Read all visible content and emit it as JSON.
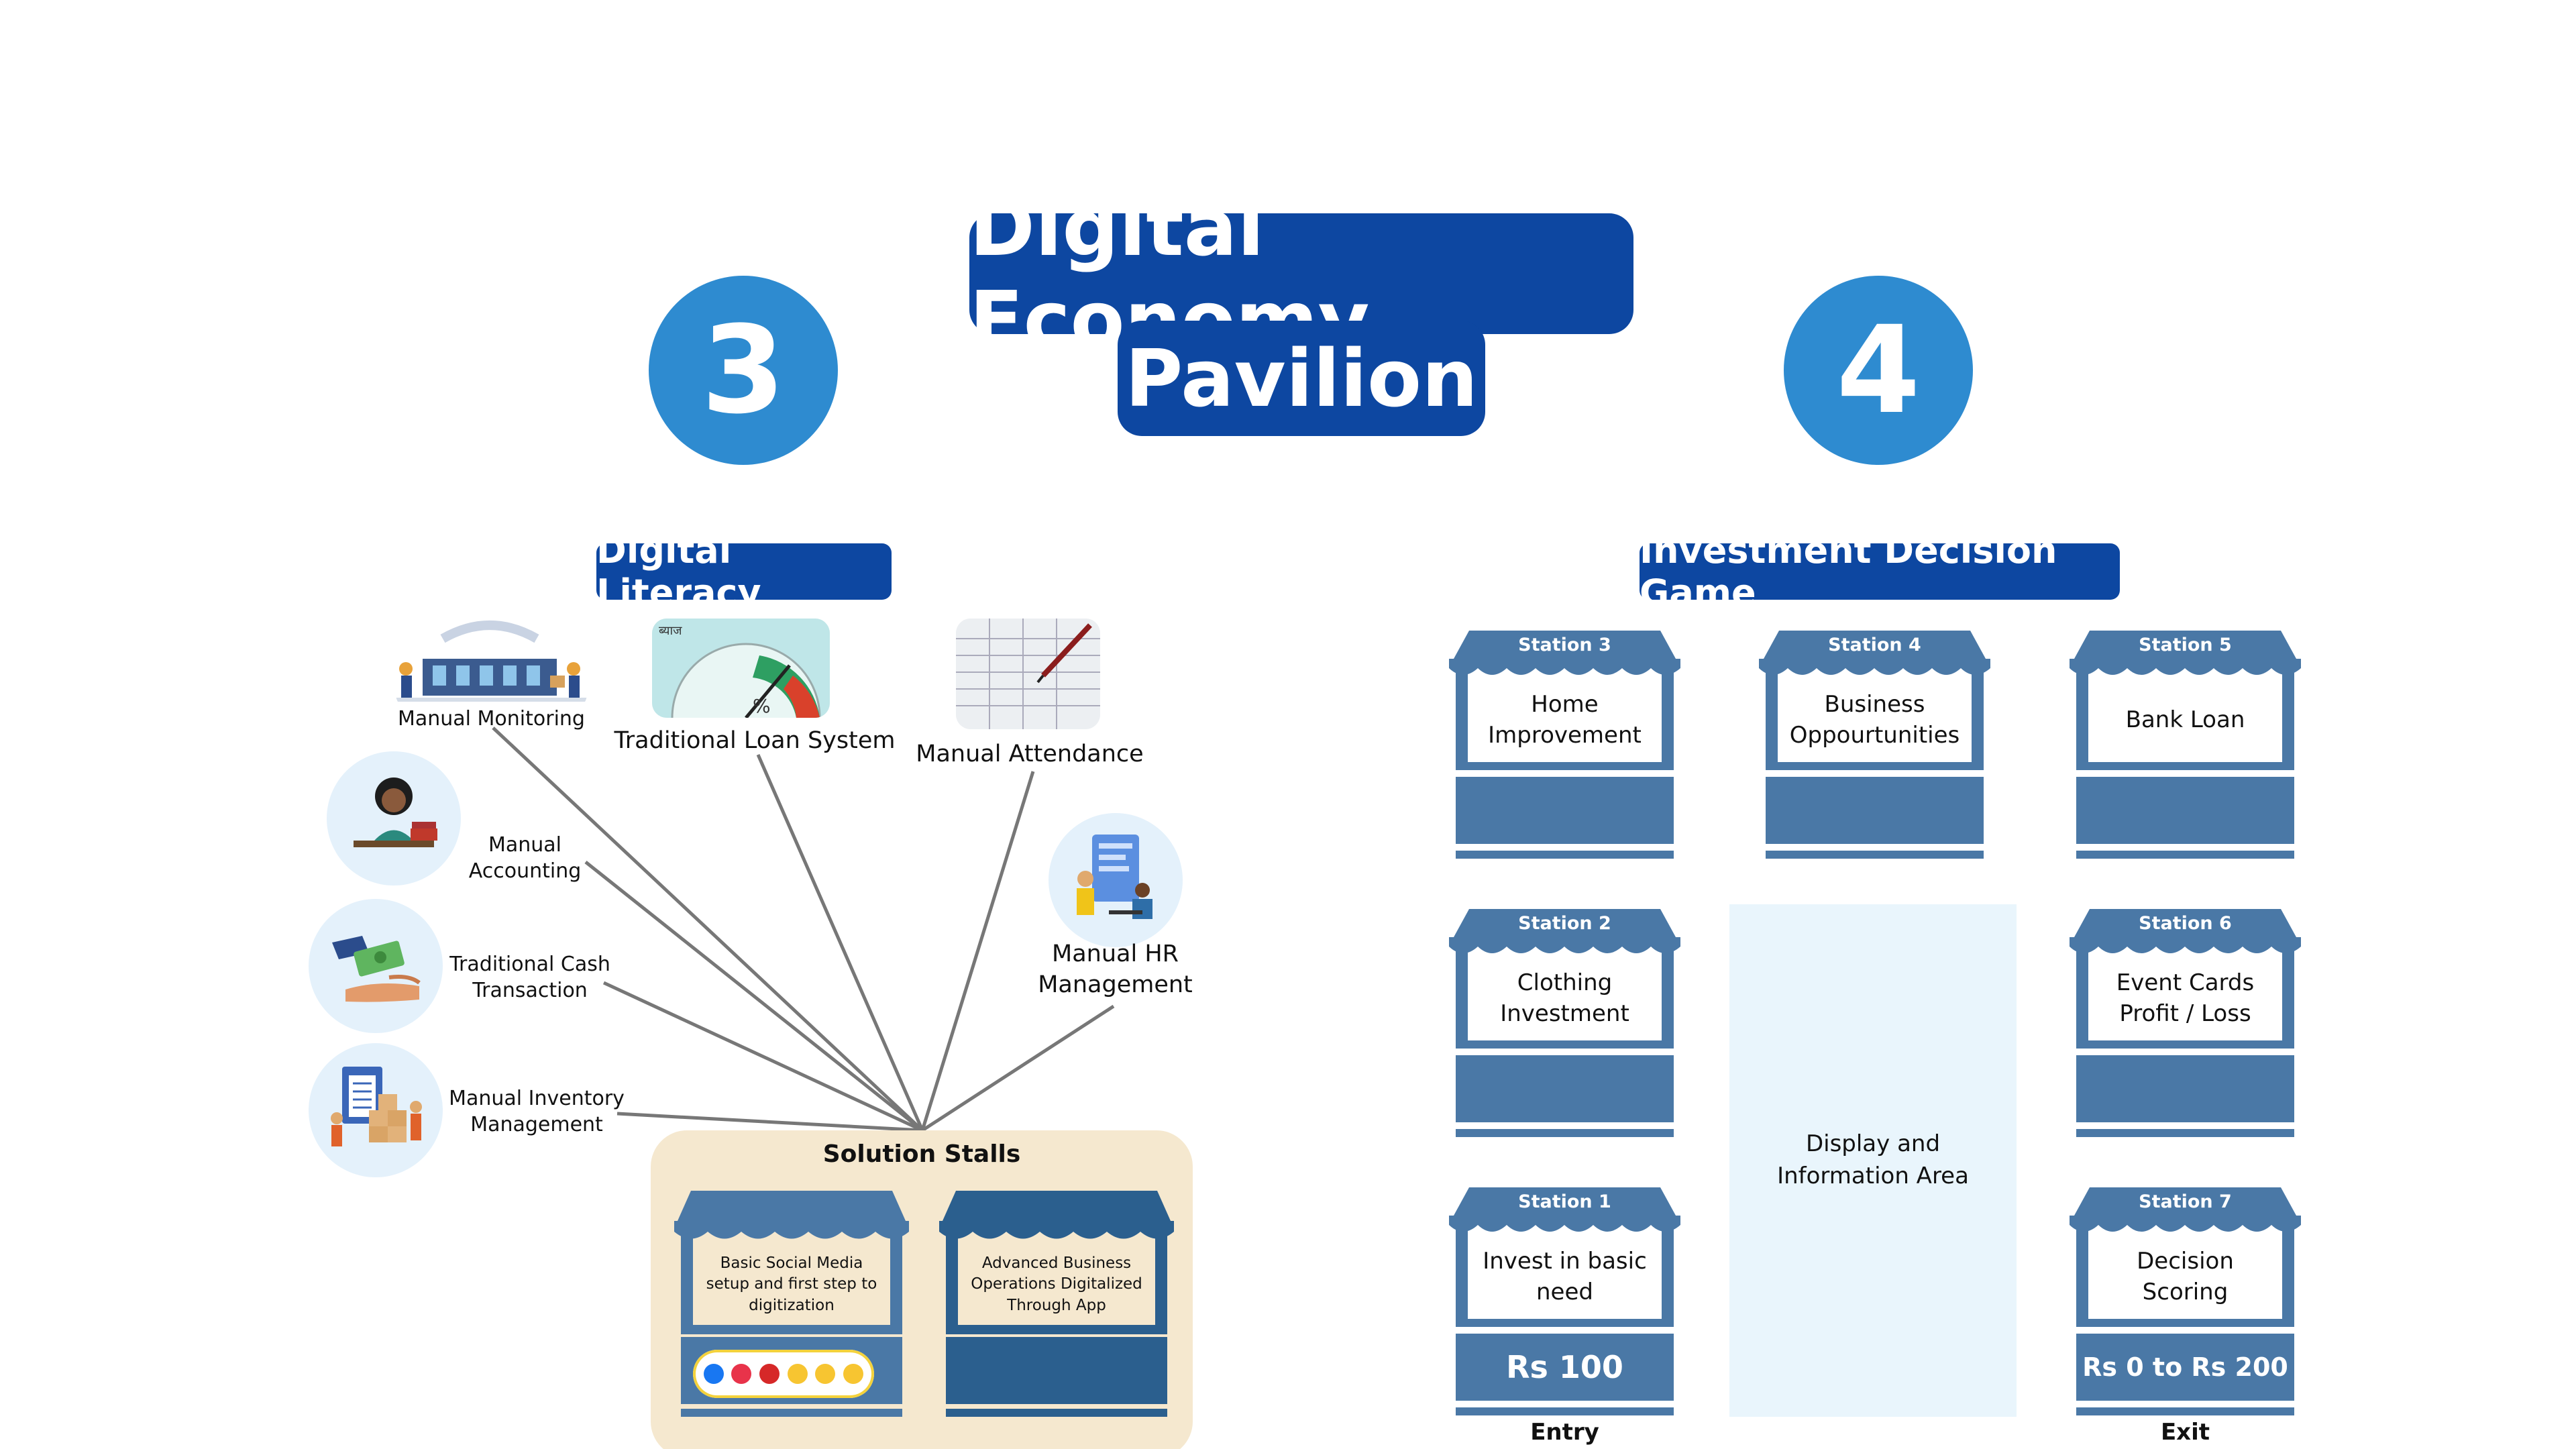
{
  "title": {
    "line1": "Digital Economy",
    "line2": "Pavilion"
  },
  "left_section": {
    "number": "3",
    "heading": "Digital Literacy",
    "nodes": [
      {
        "id": "manual-monitoring",
        "label": "Manual Monitoring"
      },
      {
        "id": "traditional-loan",
        "label": "Traditional Loan System",
        "sign_text": "ब्याज"
      },
      {
        "id": "manual-attendance",
        "label": "Manual Attendance"
      },
      {
        "id": "manual-accounting",
        "label_line1": "Manual",
        "label_line2": "Accounting"
      },
      {
        "id": "manual-hr",
        "label_line1": "Manual HR",
        "label_line2": "Management"
      },
      {
        "id": "cash-transaction",
        "label_line1": "Traditional Cash",
        "label_line2": "Transaction"
      },
      {
        "id": "manual-inventory",
        "label_line1": "Manual Inventory",
        "label_line2": "Management"
      }
    ],
    "solution": {
      "title": "Solution Stalls",
      "stalls": [
        {
          "text_line1": "Basic Social Media",
          "text_line2": "setup and first step to",
          "text_line3": "digitization"
        },
        {
          "text_line1": "Advanced Business",
          "text_line2": "Operations Digitalized",
          "text_line3": "Through App"
        }
      ]
    }
  },
  "right_section": {
    "number": "4",
    "heading": "Investment Decision Game",
    "stations": [
      {
        "tag": "Station 3",
        "line1": "Home",
        "line2": "Improvement",
        "amount": ""
      },
      {
        "tag": "Station 4",
        "line1": "Business",
        "line2": "Oppourtunities",
        "amount": ""
      },
      {
        "tag": "Station 5",
        "line1": "Bank Loan",
        "line2": "",
        "amount": ""
      },
      {
        "tag": "Station 2",
        "line1": "Clothing",
        "line2": "Investment",
        "amount": ""
      },
      {
        "tag": "Station 6",
        "line1": "Event Cards",
        "line2": "Profit / Loss",
        "amount": ""
      },
      {
        "tag": "Station 1",
        "line1": "Invest in basic",
        "line2": "need",
        "amount": "Rs 100",
        "caption": "Entry"
      },
      {
        "tag": "Station 7",
        "line1": "Decision",
        "line2": "Scoring",
        "amount": "Rs 0 to Rs 200",
        "caption": "Exit"
      }
    ],
    "display_area": {
      "line1": "Display and",
      "line2": "Information Area"
    }
  },
  "colors": {
    "navy": "#0d47a1",
    "circle_blue": "#2e8bd0",
    "stall_blue": "#4a78a6",
    "stall_dark": "#2b5f8e",
    "solution_bg": "#f5e8cf",
    "display_bg": "#e9f5fc",
    "line_gray": "#777777"
  }
}
